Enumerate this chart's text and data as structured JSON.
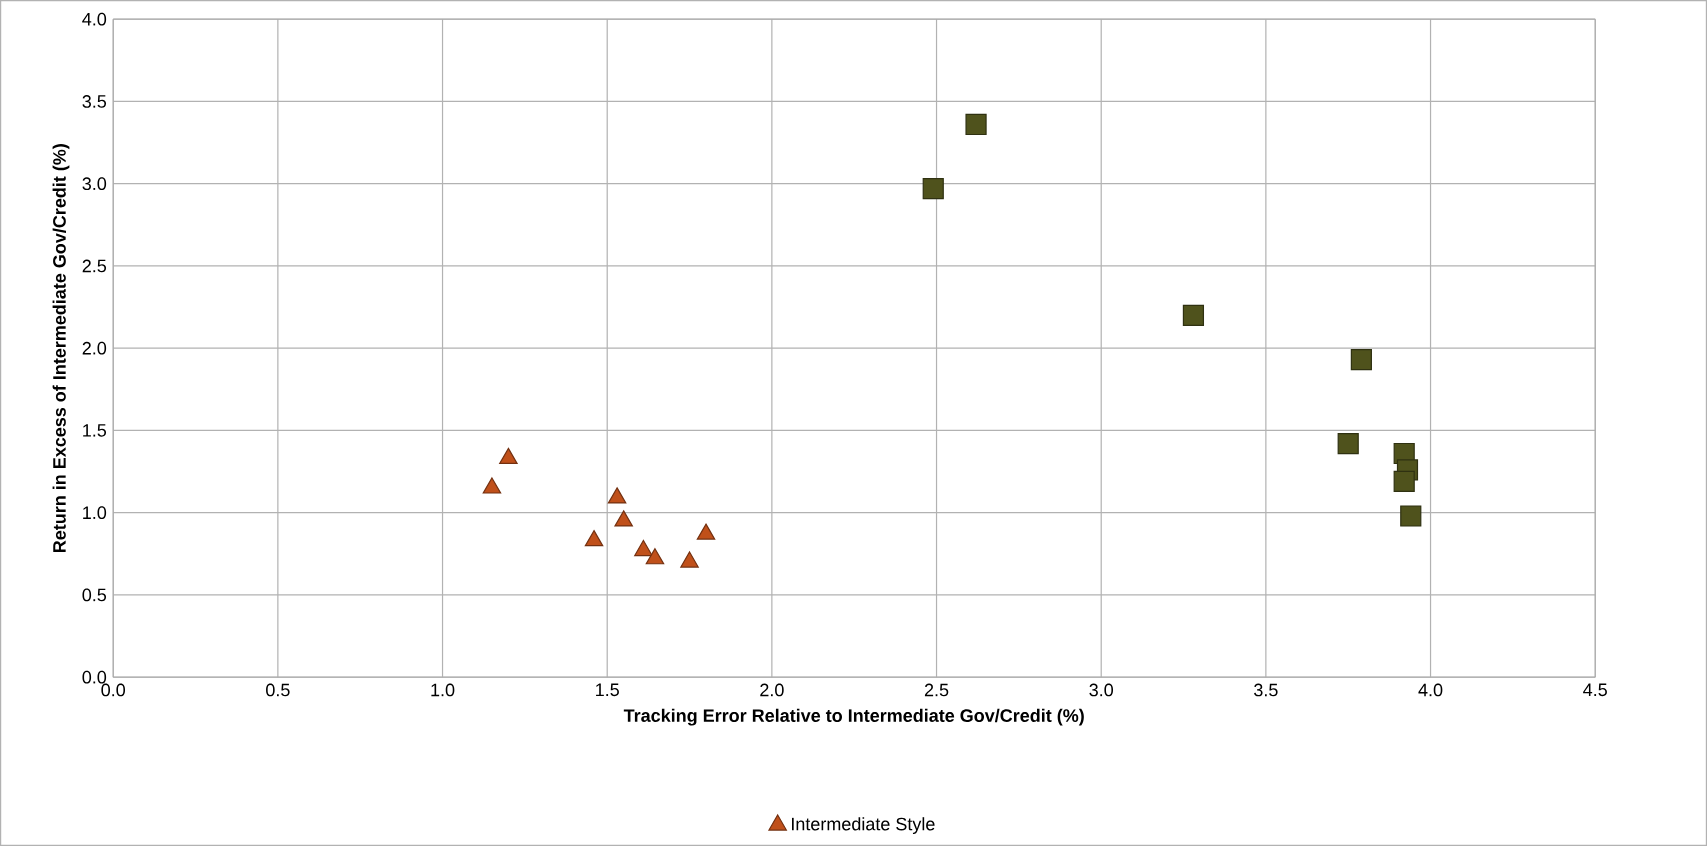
{
  "chart_data": {
    "type": "scatter",
    "xlabel": "Tracking Error  Relative to Intermediate Gov/Credit (%)",
    "ylabel": "Return in Excess  of Intermediate Gov/Credit (%)",
    "xlim": [
      0,
      4.5
    ],
    "ylim": [
      0,
      4
    ],
    "xticks": [
      {
        "value": 0,
        "label": "0.0"
      },
      {
        "value": 0.5,
        "label": "0.5"
      },
      {
        "value": 1,
        "label": "1.0"
      },
      {
        "value": 1.5,
        "label": "1.5"
      },
      {
        "value": 2,
        "label": "2.0"
      },
      {
        "value": 2.5,
        "label": "2.5"
      },
      {
        "value": 3,
        "label": "3.0"
      },
      {
        "value": 3.5,
        "label": "3.5"
      },
      {
        "value": 4,
        "label": "4.0"
      },
      {
        "value": 4.5,
        "label": "4.5"
      }
    ],
    "yticks": [
      {
        "value": 0,
        "label": "0.0"
      },
      {
        "value": 0.5,
        "label": "0.5"
      },
      {
        "value": 1,
        "label": "1.0"
      },
      {
        "value": 1.5,
        "label": "1.5"
      },
      {
        "value": 2,
        "label": "2.0"
      },
      {
        "value": 2.5,
        "label": "2.5"
      },
      {
        "value": 3,
        "label": "3.0"
      },
      {
        "value": 3.5,
        "label": "3.5"
      },
      {
        "value": 4,
        "label": "4.0"
      }
    ],
    "grid": true,
    "legend": "bottom",
    "series": [
      {
        "color": "#4f521c",
        "marker": "square",
        "x": [
          2.49,
          2.62,
          3.28,
          3.79,
          3.75,
          3.92,
          3.93,
          3.92,
          3.94
        ],
        "values": [
          2.97,
          3.36,
          2.2,
          1.93,
          1.42,
          1.36,
          1.26,
          1.19,
          0.98
        ]
      },
      {
        "name": "Intermediate Style",
        "color": "#c0501a",
        "marker": "triangle",
        "x": [
          1.15,
          1.2,
          1.46,
          1.53,
          1.55,
          1.61,
          1.645,
          1.75,
          1.8
        ],
        "values": [
          1.15,
          1.33,
          0.83,
          1.09,
          0.95,
          0.77,
          0.72,
          0.7,
          0.87
        ]
      }
    ]
  }
}
